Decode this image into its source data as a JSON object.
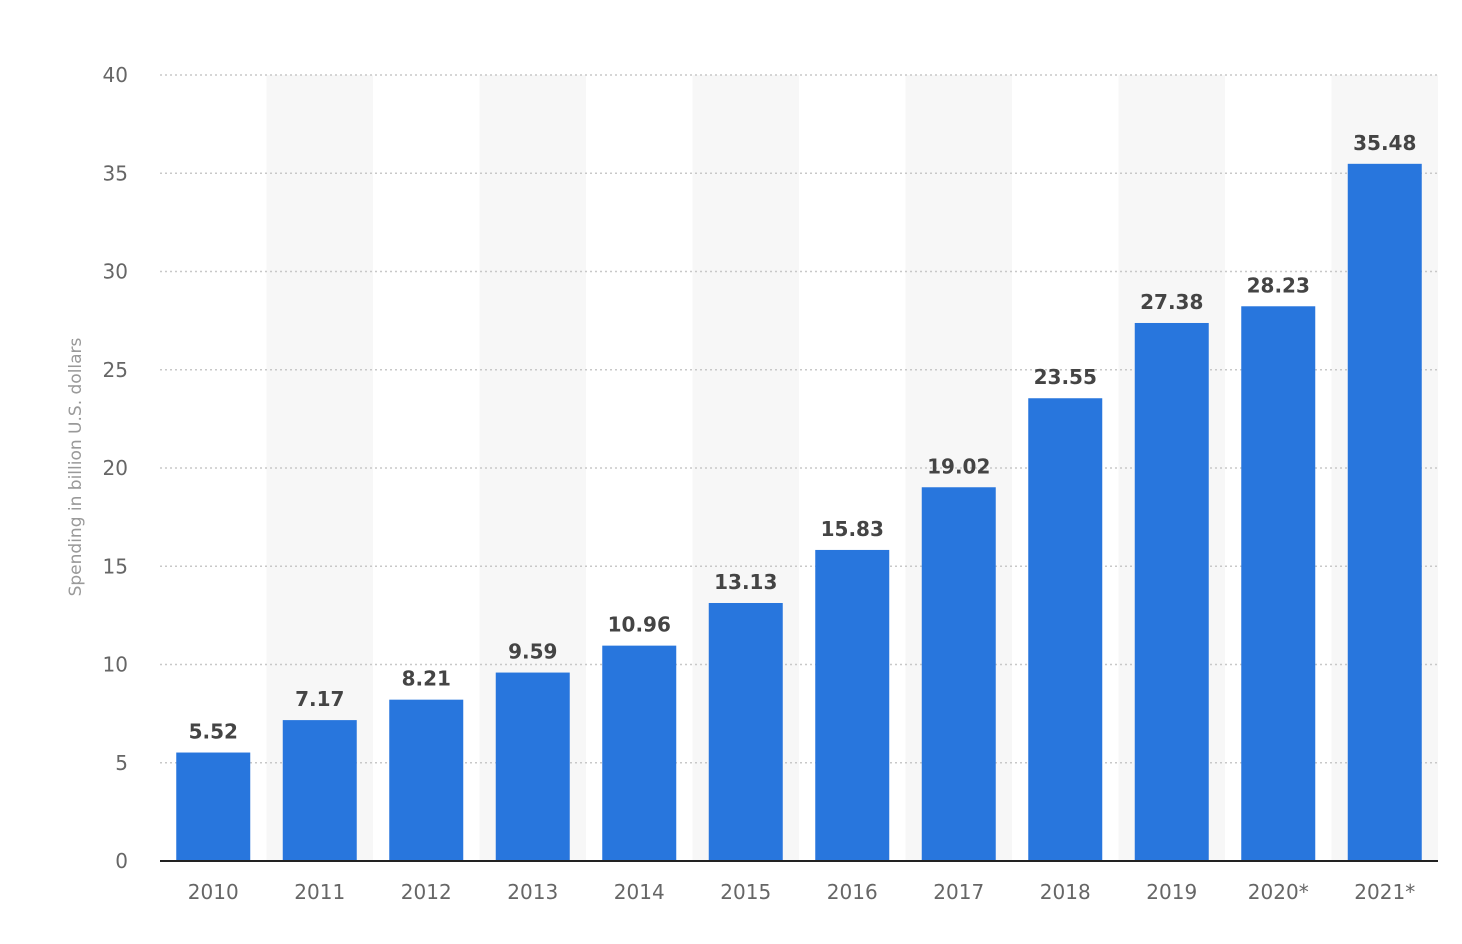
{
  "chart_data": {
    "type": "bar",
    "title": "",
    "xlabel": "",
    "ylabel": "Spending in billion U.S. dollars",
    "categories": [
      "2010",
      "2011",
      "2012",
      "2013",
      "2014",
      "2015",
      "2016",
      "2017",
      "2018",
      "2019",
      "2020*",
      "2021*"
    ],
    "values": [
      5.52,
      7.17,
      8.21,
      9.59,
      10.96,
      13.13,
      15.83,
      19.02,
      23.55,
      27.38,
      28.23,
      35.48
    ],
    "value_labels": [
      "5.52",
      "7.17",
      "8.21",
      "9.59",
      "10.96",
      "13.13",
      "15.83",
      "19.02",
      "23.55",
      "27.38",
      "28.23",
      "35.48"
    ],
    "ylim": [
      0,
      40
    ],
    "yticks": [
      "0",
      "5",
      "10",
      "15",
      "20",
      "25",
      "30",
      "35",
      "40"
    ],
    "grid": true,
    "legend": "none",
    "bar_color": "#2876dd",
    "alternating_band_color": "#f7f7f7"
  }
}
